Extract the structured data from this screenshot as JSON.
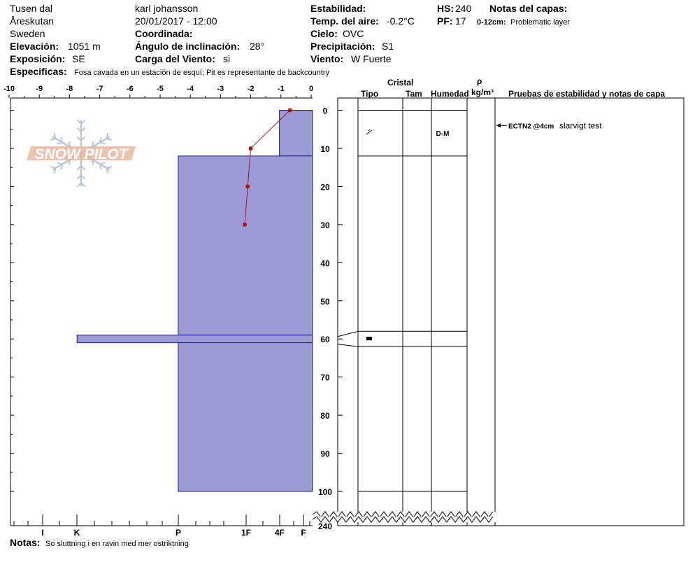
{
  "header": {
    "location": "Tusen dal",
    "area": "Åreskutan",
    "country": "Sweden",
    "elevation_label": "Elevación:",
    "elevation_value": "1051 m",
    "aspect_label": "Exposición:",
    "aspect_value": "SE",
    "observer": "karl johansson",
    "datetime": "20/01/2017 - 12:00",
    "coord_label": "Coordinada:",
    "incline_label": "Ángulo de inclinación:",
    "incline_value": "28°",
    "wind_load_label": "Carga del Viento:",
    "wind_load_value": "si",
    "stability_label": "Estabilidad:",
    "air_temp_label": "Temp. del aire:",
    "air_temp_value": "-0.2°C",
    "sky_label": "Cielo:",
    "sky_value": "OVC",
    "precip_label": "Precipitación:",
    "precip_value": "S1",
    "wind_label": "Viento:",
    "wind_value": "W Fuerte",
    "hs_label": "HS:",
    "hs_value": "240",
    "pf_label": "PF:",
    "pf_value": "17",
    "layer_notes_label": "Notas del capas:",
    "layer_note_range": "0-12cm:",
    "layer_note_text": "Problematic layer",
    "specifics_label": "Especificas:",
    "specifics_value": "Fosa cavada en un estación de esquí; Pit es representante de backcountry"
  },
  "footer": {
    "notes_label": "Notas:",
    "notes_value": "So sluttning i en ravin med mer ostriktning"
  },
  "columns": {
    "crystal": "Cristal",
    "type": "Tipo",
    "size": "Tam",
    "moisture": "Humedad",
    "rho": "ρ",
    "density_unit": "kg/m³",
    "tests": "Pruebas de estabilidad y notas de capa"
  },
  "logo": {
    "text": "SNOW PILOT"
  },
  "colors": {
    "hardness_fill": "#9b9bd7",
    "hardness_stroke": "#1a1a8c",
    "temp_line": "#b01818",
    "logo": "#e8b8a0",
    "snowflake": "#b8c8d8"
  },
  "chart_data": {
    "type": "snow_profile",
    "temperature_axis": {
      "ticks": [
        -10,
        -9,
        -8,
        -7,
        -6,
        -5,
        -4,
        -3,
        -2,
        -1,
        0
      ],
      "range": [
        -10,
        0
      ]
    },
    "hardness_axis": {
      "ticks": [
        "I",
        "K",
        "P",
        "1F",
        "4F",
        "F"
      ]
    },
    "depth_axis": {
      "ticks": [
        0,
        10,
        20,
        30,
        40,
        50,
        60,
        70,
        80,
        90,
        100
      ],
      "break_label": "240",
      "range": [
        0,
        100
      ]
    },
    "layers": [
      {
        "top": 0,
        "bottom": 12,
        "hardness_temp_scale": -1.05
      },
      {
        "top": 12,
        "bottom": 59,
        "hardness_temp_scale": -4.4
      },
      {
        "top": 59,
        "bottom": 61,
        "hardness_temp_scale": -7.75
      },
      {
        "top": 61,
        "bottom": 100,
        "hardness_temp_scale": -4.4
      }
    ],
    "temperature_profile": [
      {
        "depth": 0,
        "temp": -0.7
      },
      {
        "depth": 10,
        "temp": -2.0
      },
      {
        "depth": 20,
        "temp": -2.1
      },
      {
        "depth": 30,
        "temp": -2.2
      }
    ],
    "grain_rows": [
      {
        "top": 0,
        "bottom": 12,
        "moisture": "D-M"
      },
      {
        "top": 12,
        "bottom": 58
      },
      {
        "top": 58,
        "bottom": 62
      },
      {
        "top": 62,
        "bottom": 100
      }
    ],
    "stability_tests": [
      {
        "depth": 4,
        "code": "ECTN2 @4cm",
        "note": "slarvigt test"
      }
    ]
  }
}
